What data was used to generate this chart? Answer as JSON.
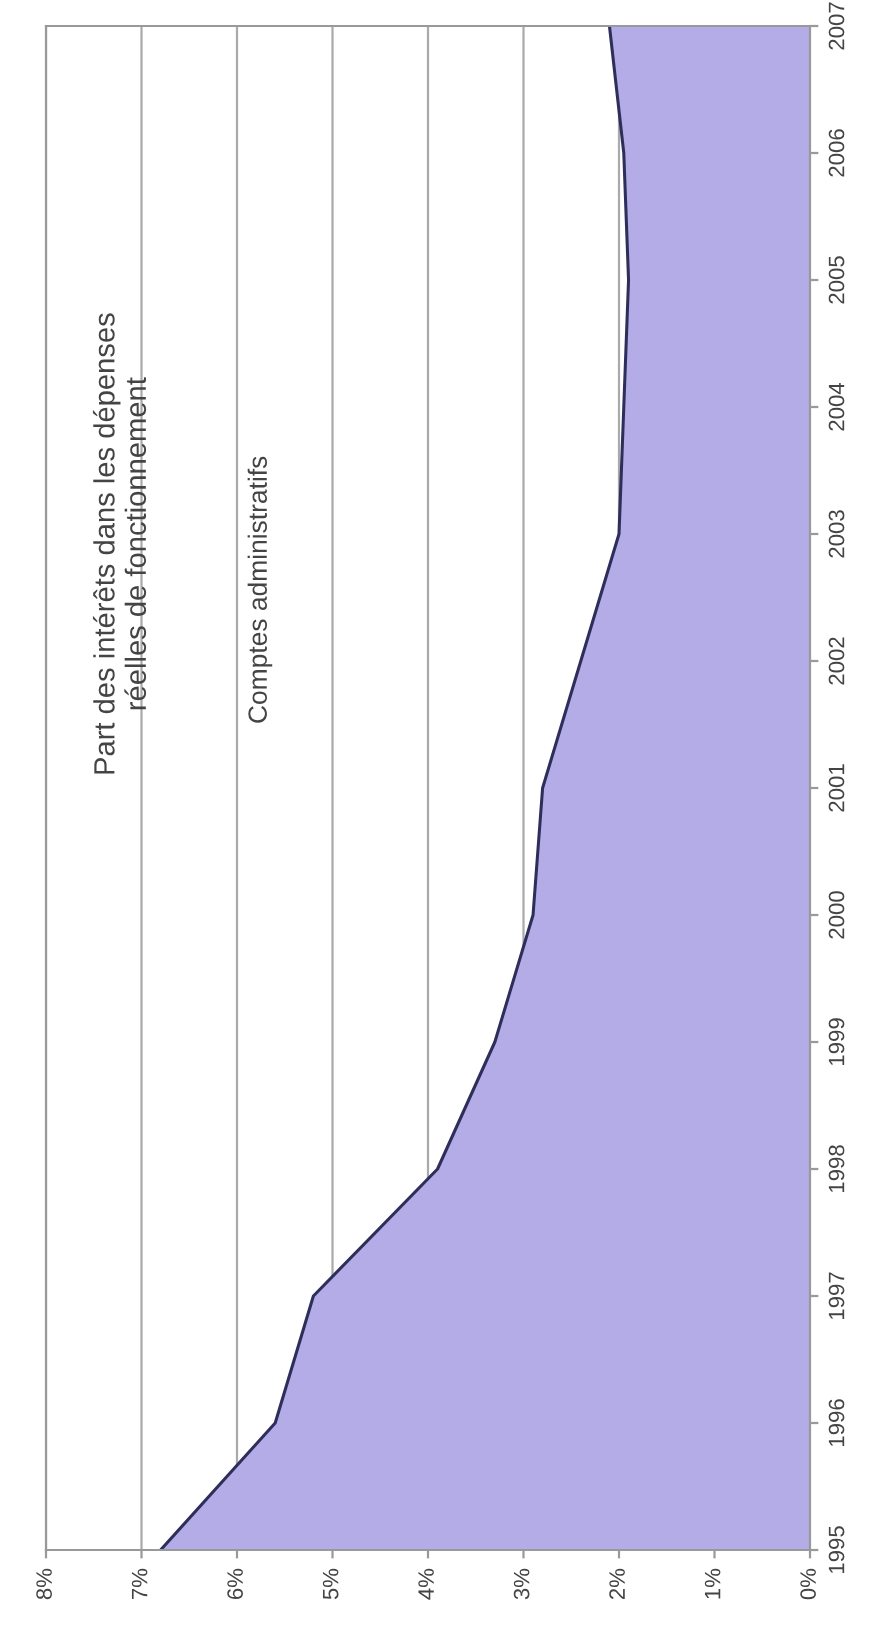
{
  "chart_data": {
    "type": "area",
    "orientation": "horizontal",
    "title": "Part des intérêts dans les dépenses\nréelles de fonctionnement",
    "subtitle": "Comptes administratifs",
    "categories": [
      "2007",
      "2006",
      "2005",
      "2004",
      "2003",
      "2002",
      "2001",
      "2000",
      "1999",
      "1998",
      "1997",
      "1996",
      "1995"
    ],
    "series": [
      {
        "color": "#b3ace6",
        "values": [
          2.1,
          1.95,
          1.9,
          1.95,
          2.0,
          2.4,
          2.8,
          2.9,
          3.3,
          3.9,
          5.2,
          5.6,
          6.8
        ]
      }
    ],
    "xlim": [
      8,
      0
    ],
    "xticks": [
      {
        "value": 8,
        "label": "8%"
      },
      {
        "value": 7,
        "label": "7%"
      },
      {
        "value": 6,
        "label": "6%"
      },
      {
        "value": 5,
        "label": "5%"
      },
      {
        "value": 4,
        "label": "4%"
      },
      {
        "value": 3,
        "label": "3%"
      },
      {
        "value": 2,
        "label": "2%"
      },
      {
        "value": 1,
        "label": "1%"
      },
      {
        "value": 0,
        "label": "0%"
      }
    ],
    "grid": "x"
  }
}
